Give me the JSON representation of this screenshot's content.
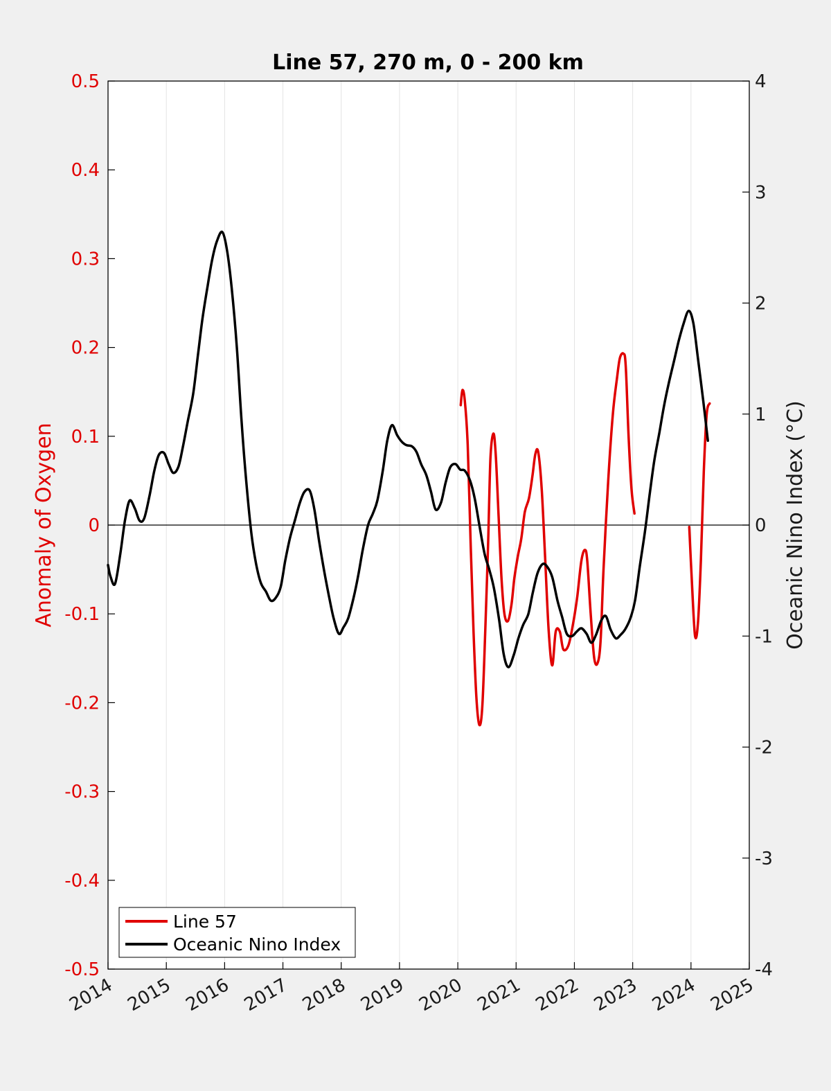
{
  "chart_data": {
    "type": "line",
    "title": "Line 57, 270 m, 0 - 200 km",
    "xlim": [
      2014,
      2025
    ],
    "x_ticks": [
      "2014",
      "2015",
      "2016",
      "2017",
      "2018",
      "2019",
      "2020",
      "2021",
      "2022",
      "2023",
      "2024",
      "2025"
    ],
    "y_left": {
      "label": "Anomaly of Oxygen",
      "lim": [
        -0.5,
        0.5
      ],
      "ticks": [
        "0.5",
        "0.4",
        "0.3",
        "0.2",
        "0.1",
        "0",
        "-0.1",
        "-0.2",
        "-0.3",
        "-0.4",
        "-0.5"
      ],
      "color": "#e00000"
    },
    "y_right": {
      "label": "Oceanic Nino Index (°C)",
      "lim": [
        -4,
        4
      ],
      "ticks": [
        "4",
        "3",
        "2",
        "1",
        "0",
        "-1",
        "-2",
        "-3",
        "-4"
      ],
      "color": "#1a1a1a"
    },
    "zero_line": true,
    "grid": "vertical-only",
    "legend_position": "bottom-left",
    "series": [
      {
        "name": "Line 57",
        "axis": "left",
        "color": "#e00000",
        "segments": [
          [
            [
              2020.05,
              0.135
            ],
            [
              2020.08,
              0.152
            ],
            [
              2020.12,
              0.14
            ],
            [
              2020.17,
              0.09
            ],
            [
              2020.22,
              -0.02
            ],
            [
              2020.27,
              -0.12
            ],
            [
              2020.32,
              -0.195
            ],
            [
              2020.37,
              -0.225
            ],
            [
              2020.42,
              -0.205
            ],
            [
              2020.47,
              -0.12
            ],
            [
              2020.52,
              -0.02
            ],
            [
              2020.56,
              0.075
            ],
            [
              2020.61,
              0.103
            ],
            [
              2020.65,
              0.08
            ],
            [
              2020.7,
              0.01
            ],
            [
              2020.75,
              -0.06
            ],
            [
              2020.8,
              -0.1
            ],
            [
              2020.86,
              -0.108
            ],
            [
              2020.92,
              -0.09
            ],
            [
              2020.97,
              -0.06
            ],
            [
              2021.03,
              -0.035
            ],
            [
              2021.09,
              -0.015
            ],
            [
              2021.15,
              0.015
            ],
            [
              2021.22,
              0.03
            ],
            [
              2021.28,
              0.055
            ],
            [
              2021.33,
              0.08
            ],
            [
              2021.38,
              0.082
            ],
            [
              2021.44,
              0.04
            ],
            [
              2021.5,
              -0.04
            ],
            [
              2021.56,
              -0.12
            ],
            [
              2021.62,
              -0.158
            ],
            [
              2021.68,
              -0.12
            ],
            [
              2021.75,
              -0.12
            ],
            [
              2021.81,
              -0.14
            ],
            [
              2021.9,
              -0.135
            ],
            [
              2021.98,
              -0.11
            ],
            [
              2022.05,
              -0.08
            ],
            [
              2022.12,
              -0.04
            ],
            [
              2022.18,
              -0.028
            ],
            [
              2022.22,
              -0.04
            ],
            [
              2022.28,
              -0.1
            ],
            [
              2022.34,
              -0.15
            ],
            [
              2022.4,
              -0.155
            ],
            [
              2022.45,
              -0.13
            ],
            [
              2022.5,
              -0.05
            ],
            [
              2022.58,
              0.05
            ],
            [
              2022.66,
              0.125
            ],
            [
              2022.73,
              0.165
            ],
            [
              2022.78,
              0.188
            ],
            [
              2022.84,
              0.193
            ],
            [
              2022.88,
              0.18
            ],
            [
              2022.93,
              0.1
            ],
            [
              2022.98,
              0.04
            ],
            [
              2023.03,
              0.013
            ]
          ],
          [
            [
              2023.97,
              -0.002
            ],
            [
              2024.02,
              -0.07
            ],
            [
              2024.07,
              -0.125
            ],
            [
              2024.12,
              -0.11
            ],
            [
              2024.17,
              -0.04
            ],
            [
              2024.22,
              0.06
            ],
            [
              2024.27,
              0.125
            ],
            [
              2024.32,
              0.137
            ]
          ]
        ]
      },
      {
        "name": "Oceanic Nino Index",
        "axis": "right",
        "color": "#000000",
        "segments": [
          [
            [
              2014.0,
              -0.36
            ],
            [
              2014.04,
              -0.46
            ],
            [
              2014.12,
              -0.53
            ],
            [
              2014.21,
              -0.26
            ],
            [
              2014.29,
              0.04
            ],
            [
              2014.37,
              0.22
            ],
            [
              2014.46,
              0.15
            ],
            [
              2014.54,
              0.04
            ],
            [
              2014.62,
              0.06
            ],
            [
              2014.71,
              0.26
            ],
            [
              2014.79,
              0.48
            ],
            [
              2014.87,
              0.63
            ],
            [
              2014.96,
              0.65
            ],
            [
              2015.04,
              0.55
            ],
            [
              2015.12,
              0.47
            ],
            [
              2015.21,
              0.53
            ],
            [
              2015.29,
              0.72
            ],
            [
              2015.37,
              0.94
            ],
            [
              2015.46,
              1.18
            ],
            [
              2015.54,
              1.52
            ],
            [
              2015.62,
              1.86
            ],
            [
              2015.71,
              2.16
            ],
            [
              2015.79,
              2.4
            ],
            [
              2015.87,
              2.56
            ],
            [
              2015.96,
              2.64
            ],
            [
              2016.04,
              2.48
            ],
            [
              2016.12,
              2.14
            ],
            [
              2016.21,
              1.6
            ],
            [
              2016.29,
              0.94
            ],
            [
              2016.37,
              0.4
            ],
            [
              2016.46,
              -0.08
            ],
            [
              2016.54,
              -0.35
            ],
            [
              2016.62,
              -0.52
            ],
            [
              2016.71,
              -0.6
            ],
            [
              2016.79,
              -0.68
            ],
            [
              2016.87,
              -0.66
            ],
            [
              2016.96,
              -0.56
            ],
            [
              2017.04,
              -0.32
            ],
            [
              2017.12,
              -0.12
            ],
            [
              2017.21,
              0.05
            ],
            [
              2017.29,
              0.2
            ],
            [
              2017.37,
              0.3
            ],
            [
              2017.46,
              0.31
            ],
            [
              2017.54,
              0.14
            ],
            [
              2017.62,
              -0.14
            ],
            [
              2017.71,
              -0.42
            ],
            [
              2017.79,
              -0.64
            ],
            [
              2017.87,
              -0.84
            ],
            [
              2017.96,
              -0.98
            ],
            [
              2018.04,
              -0.92
            ],
            [
              2018.12,
              -0.84
            ],
            [
              2018.21,
              -0.66
            ],
            [
              2018.29,
              -0.46
            ],
            [
              2018.37,
              -0.22
            ],
            [
              2018.46,
              0.0
            ],
            [
              2018.54,
              0.1
            ],
            [
              2018.62,
              0.22
            ],
            [
              2018.71,
              0.48
            ],
            [
              2018.79,
              0.76
            ],
            [
              2018.87,
              0.9
            ],
            [
              2018.96,
              0.81
            ],
            [
              2019.04,
              0.75
            ],
            [
              2019.12,
              0.72
            ],
            [
              2019.21,
              0.71
            ],
            [
              2019.29,
              0.66
            ],
            [
              2019.37,
              0.55
            ],
            [
              2019.46,
              0.45
            ],
            [
              2019.54,
              0.3
            ],
            [
              2019.62,
              0.14
            ],
            [
              2019.71,
              0.2
            ],
            [
              2019.79,
              0.38
            ],
            [
              2019.87,
              0.52
            ],
            [
              2019.96,
              0.55
            ],
            [
              2020.04,
              0.5
            ],
            [
              2020.12,
              0.49
            ],
            [
              2020.21,
              0.4
            ],
            [
              2020.29,
              0.24
            ],
            [
              2020.37,
              0.0
            ],
            [
              2020.46,
              -0.26
            ],
            [
              2020.54,
              -0.4
            ],
            [
              2020.62,
              -0.57
            ],
            [
              2020.71,
              -0.86
            ],
            [
              2020.79,
              -1.17
            ],
            [
              2020.87,
              -1.28
            ],
            [
              2020.96,
              -1.17
            ],
            [
              2021.04,
              -1.02
            ],
            [
              2021.12,
              -0.9
            ],
            [
              2021.21,
              -0.8
            ],
            [
              2021.29,
              -0.6
            ],
            [
              2021.37,
              -0.43
            ],
            [
              2021.46,
              -0.35
            ],
            [
              2021.54,
              -0.38
            ],
            [
              2021.62,
              -0.47
            ],
            [
              2021.71,
              -0.68
            ],
            [
              2021.79,
              -0.83
            ],
            [
              2021.87,
              -0.98
            ],
            [
              2021.96,
              -1.0
            ],
            [
              2022.04,
              -0.96
            ],
            [
              2022.12,
              -0.93
            ],
            [
              2022.21,
              -0.98
            ],
            [
              2022.29,
              -1.06
            ],
            [
              2022.37,
              -0.99
            ],
            [
              2022.46,
              -0.86
            ],
            [
              2022.54,
              -0.82
            ],
            [
              2022.62,
              -0.94
            ],
            [
              2022.71,
              -1.02
            ],
            [
              2022.79,
              -0.99
            ],
            [
              2022.87,
              -0.94
            ],
            [
              2022.96,
              -0.84
            ],
            [
              2023.04,
              -0.68
            ],
            [
              2023.12,
              -0.38
            ],
            [
              2023.21,
              -0.06
            ],
            [
              2023.29,
              0.27
            ],
            [
              2023.37,
              0.58
            ],
            [
              2023.46,
              0.84
            ],
            [
              2023.54,
              1.08
            ],
            [
              2023.62,
              1.28
            ],
            [
              2023.71,
              1.48
            ],
            [
              2023.79,
              1.66
            ],
            [
              2023.87,
              1.81
            ],
            [
              2023.96,
              1.93
            ],
            [
              2024.04,
              1.82
            ],
            [
              2024.12,
              1.5
            ],
            [
              2024.21,
              1.12
            ],
            [
              2024.29,
              0.76
            ]
          ]
        ]
      }
    ]
  }
}
